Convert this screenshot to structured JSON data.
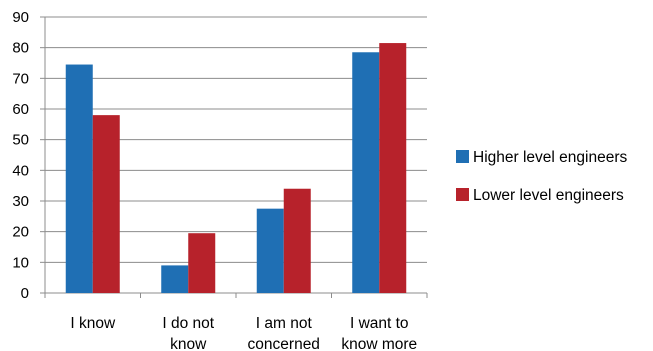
{
  "chart_data": {
    "type": "bar",
    "title": "",
    "xlabel": "",
    "ylabel": "",
    "categories": [
      [
        "I know"
      ],
      [
        "I do not",
        "know"
      ],
      [
        "I am not",
        "concerned"
      ],
      [
        "I want to",
        "know more"
      ]
    ],
    "series": [
      {
        "name": "Higher level engineers",
        "color": "#1f6fb4",
        "values": [
          74.5,
          9,
          27.5,
          78.5
        ]
      },
      {
        "name": "Lower level engineers",
        "color": "#b7222b",
        "values": [
          58,
          19.5,
          34,
          81.5
        ]
      }
    ],
    "ylim": [
      0,
      90
    ],
    "yticks": [
      0,
      10,
      20,
      30,
      40,
      50,
      60,
      70,
      80,
      90
    ],
    "grid": true,
    "legend_position": "right"
  }
}
